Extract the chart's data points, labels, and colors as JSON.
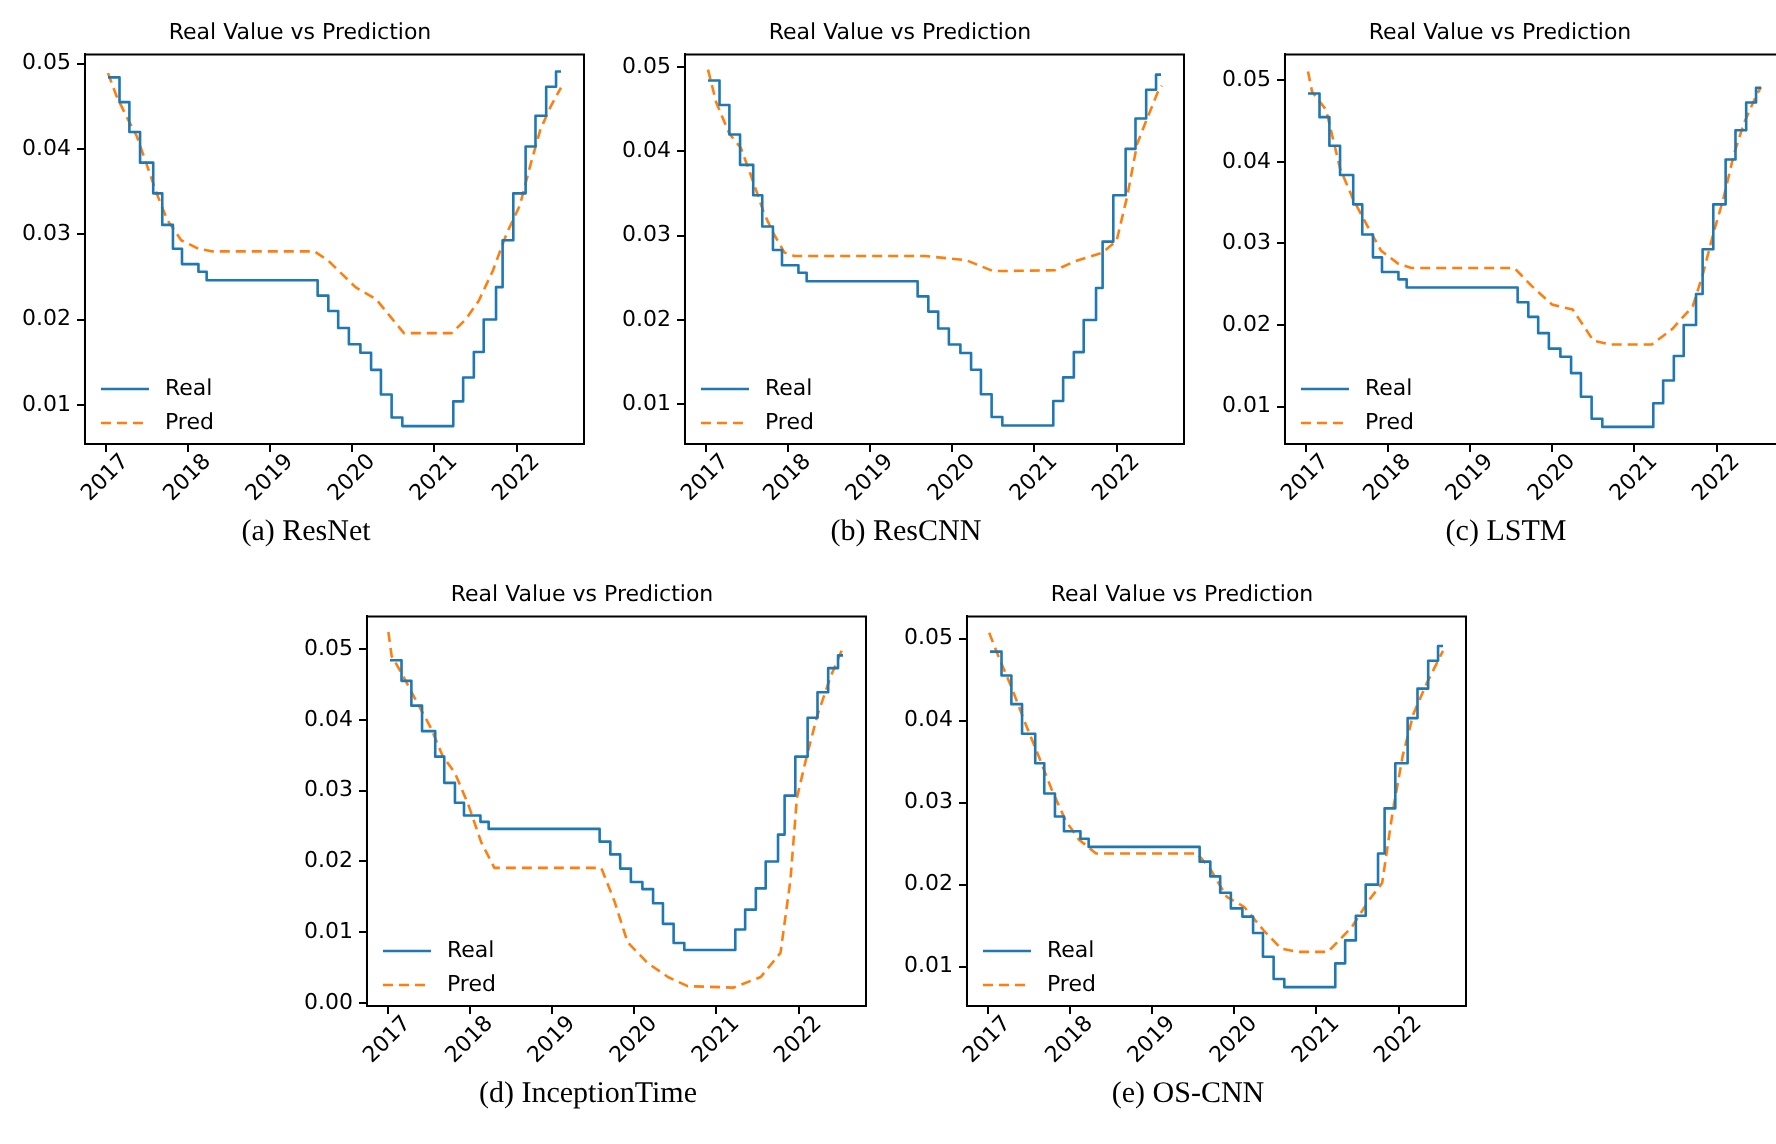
{
  "chart_data": [
    {
      "type": "line",
      "title": "Real Value vs Prediction",
      "annotations": [
        "(a) ResNet"
      ],
      "xlim": [
        2016.75,
        2022.82
      ],
      "xticks": [
        2017,
        2018,
        2019,
        2020,
        2021,
        2022
      ],
      "ylim": [
        0.0054,
        0.0511
      ],
      "yticks": [
        0.01,
        0.02,
        0.03,
        0.04,
        0.05
      ],
      "grid": false,
      "legend": "bottom left",
      "series": [
        {
          "name": "Real",
          "type": "step",
          "color": "#1f77b4",
          "line_style": "solid",
          "x": [
            2017.03,
            2017.17,
            2017.29,
            2017.42,
            2017.58,
            2017.69,
            2017.82,
            2017.93,
            2018.13,
            2018.23,
            2019.58,
            2019.71,
            2019.83,
            2019.96,
            2020.1,
            2020.23,
            2020.35,
            2020.48,
            2020.61,
            2021.23,
            2021.35,
            2021.48,
            2021.6,
            2021.75,
            2021.83,
            2021.96,
            2022.11,
            2022.23,
            2022.36,
            2022.48,
            2022.54
          ],
          "values": [
            0.0484,
            0.0455,
            0.042,
            0.0384,
            0.0348,
            0.0311,
            0.0283,
            0.0265,
            0.0256,
            0.0246,
            0.0228,
            0.021,
            0.019,
            0.0171,
            0.0161,
            0.0141,
            0.0112,
            0.0085,
            0.0075,
            0.0104,
            0.0132,
            0.0162,
            0.02,
            0.0238,
            0.0293,
            0.0348,
            0.0403,
            0.0439,
            0.0473,
            0.0491,
            0.0491
          ]
        },
        {
          "name": "Pred",
          "type": "line",
          "color": "#ff7f0e",
          "line_style": "dashed",
          "x": [
            2017.03,
            2017.13,
            2017.25,
            2017.38,
            2017.5,
            2017.63,
            2017.75,
            2017.92,
            2018.13,
            2018.29,
            2019.54,
            2019.71,
            2019.88,
            2020.04,
            2020.29,
            2020.46,
            2020.63,
            2021.21,
            2021.38,
            2021.54,
            2021.71,
            2021.88,
            2022.04,
            2022.17,
            2022.29,
            2022.42,
            2022.54
          ],
          "values": [
            0.0489,
            0.0463,
            0.0439,
            0.0415,
            0.0382,
            0.0346,
            0.0317,
            0.0293,
            0.0283,
            0.028,
            0.028,
            0.0269,
            0.0253,
            0.0238,
            0.0224,
            0.0204,
            0.0184,
            0.0184,
            0.02,
            0.0222,
            0.0257,
            0.0301,
            0.0334,
            0.0382,
            0.0423,
            0.0451,
            0.0472
          ]
        }
      ]
    },
    {
      "type": "line",
      "title": "Real Value vs Prediction",
      "annotations": [
        "(b) ResCNN"
      ],
      "xlim": [
        2016.75,
        2022.82
      ],
      "xticks": [
        2017,
        2018,
        2019,
        2020,
        2021,
        2022
      ],
      "ylim": [
        0.0053,
        0.0515
      ],
      "yticks": [
        0.01,
        0.02,
        0.03,
        0.04,
        0.05
      ],
      "grid": false,
      "legend": "bottom left",
      "series": [
        {
          "name": "Real",
          "type": "step",
          "color": "#1f77b4",
          "line_style": "solid",
          "x": [
            2017.03,
            2017.17,
            2017.29,
            2017.42,
            2017.58,
            2017.69,
            2017.82,
            2017.93,
            2018.13,
            2018.23,
            2019.58,
            2019.71,
            2019.83,
            2019.96,
            2020.1,
            2020.23,
            2020.35,
            2020.48,
            2020.61,
            2021.23,
            2021.35,
            2021.48,
            2021.6,
            2021.75,
            2021.83,
            2021.96,
            2022.11,
            2022.23,
            2022.36,
            2022.48,
            2022.54
          ],
          "values": [
            0.0484,
            0.0455,
            0.042,
            0.0384,
            0.0348,
            0.0311,
            0.0283,
            0.0265,
            0.0256,
            0.0246,
            0.0228,
            0.021,
            0.019,
            0.0171,
            0.0161,
            0.0141,
            0.0112,
            0.0085,
            0.0075,
            0.0104,
            0.0132,
            0.0162,
            0.02,
            0.0238,
            0.0293,
            0.0348,
            0.0403,
            0.0439,
            0.0473,
            0.0491,
            0.0491
          ]
        },
        {
          "name": "Pred",
          "type": "line",
          "color": "#ff7f0e",
          "line_style": "dashed",
          "x": [
            2017.03,
            2017.13,
            2017.29,
            2017.43,
            2017.58,
            2017.71,
            2017.83,
            2017.96,
            2018.08,
            2019.67,
            2020.17,
            2020.5,
            2021.25,
            2021.5,
            2021.83,
            2022.0,
            2022.13,
            2022.25,
            2022.38,
            2022.5,
            2022.55
          ],
          "values": [
            0.0497,
            0.0458,
            0.0421,
            0.0404,
            0.0364,
            0.0327,
            0.0302,
            0.028,
            0.0276,
            0.0276,
            0.0271,
            0.0258,
            0.0259,
            0.027,
            0.028,
            0.0294,
            0.0347,
            0.0409,
            0.0441,
            0.047,
            0.0478
          ]
        }
      ]
    },
    {
      "type": "line",
      "title": "Real Value vs Prediction",
      "annotations": [
        "(c) LSTM"
      ],
      "xlim": [
        2016.75,
        2022.82
      ],
      "xticks": [
        2017,
        2018,
        2019,
        2020,
        2021,
        2022
      ],
      "ylim": [
        0.0054,
        0.0532
      ],
      "yticks": [
        0.01,
        0.02,
        0.03,
        0.04,
        0.05
      ],
      "grid": false,
      "legend": "bottom left",
      "series": [
        {
          "name": "Real",
          "type": "step",
          "color": "#1f77b4",
          "line_style": "solid",
          "x": [
            2017.03,
            2017.17,
            2017.29,
            2017.42,
            2017.58,
            2017.69,
            2017.82,
            2017.93,
            2018.13,
            2018.23,
            2019.58,
            2019.71,
            2019.83,
            2019.96,
            2020.1,
            2020.23,
            2020.35,
            2020.48,
            2020.61,
            2021.23,
            2021.35,
            2021.48,
            2021.6,
            2021.75,
            2021.83,
            2021.96,
            2022.11,
            2022.23,
            2022.36,
            2022.48,
            2022.54
          ],
          "values": [
            0.0484,
            0.0455,
            0.042,
            0.0384,
            0.0348,
            0.0311,
            0.0283,
            0.0265,
            0.0256,
            0.0246,
            0.0228,
            0.021,
            0.019,
            0.0171,
            0.0161,
            0.0141,
            0.0112,
            0.0085,
            0.0075,
            0.0104,
            0.0132,
            0.0162,
            0.02,
            0.0238,
            0.0293,
            0.0348,
            0.0403,
            0.0439,
            0.0473,
            0.0491,
            0.0491
          ]
        },
        {
          "name": "Pred",
          "type": "line",
          "color": "#ff7f0e",
          "line_style": "dashed",
          "x": [
            2017.03,
            2017.08,
            2017.25,
            2017.42,
            2017.58,
            2017.75,
            2017.92,
            2018.13,
            2018.29,
            2019.54,
            2019.75,
            2020.0,
            2020.25,
            2020.5,
            2020.71,
            2021.21,
            2021.46,
            2021.71,
            2021.83,
            2021.96,
            2022.08,
            2022.21,
            2022.33,
            2022.48,
            2022.54
          ],
          "values": [
            0.0511,
            0.0486,
            0.0464,
            0.0392,
            0.0354,
            0.0322,
            0.0291,
            0.0275,
            0.027,
            0.027,
            0.0248,
            0.0225,
            0.0219,
            0.0181,
            0.0176,
            0.0176,
            0.0195,
            0.0223,
            0.0261,
            0.0312,
            0.0354,
            0.0409,
            0.0447,
            0.0481,
            0.0492
          ]
        }
      ]
    },
    {
      "type": "line",
      "title": "Real Value vs Prediction",
      "annotations": [
        "(d) InceptionTime"
      ],
      "xlim": [
        2016.75,
        2022.82
      ],
      "xticks": [
        2017,
        2018,
        2019,
        2020,
        2021,
        2022
      ],
      "ylim": [
        -0.0004,
        0.0546
      ],
      "yticks": [
        {
          "value": 0,
          "label": "0.00"
        },
        0.01,
        0.02,
        0.03,
        0.04,
        0.05
      ],
      "grid": false,
      "legend": "bottom left",
      "series": [
        {
          "name": "Real",
          "type": "step",
          "color": "#1f77b4",
          "line_style": "solid",
          "x": [
            2017.03,
            2017.17,
            2017.29,
            2017.42,
            2017.58,
            2017.69,
            2017.82,
            2017.93,
            2018.13,
            2018.23,
            2019.58,
            2019.71,
            2019.83,
            2019.96,
            2020.1,
            2020.23,
            2020.35,
            2020.48,
            2020.61,
            2021.23,
            2021.35,
            2021.48,
            2021.6,
            2021.75,
            2021.83,
            2021.96,
            2022.11,
            2022.23,
            2022.36,
            2022.48,
            2022.54
          ],
          "values": [
            0.0484,
            0.0455,
            0.042,
            0.0384,
            0.0348,
            0.0311,
            0.0283,
            0.0265,
            0.0256,
            0.0246,
            0.0228,
            0.021,
            0.019,
            0.0171,
            0.0161,
            0.0141,
            0.0112,
            0.0085,
            0.0075,
            0.0104,
            0.0132,
            0.0162,
            0.02,
            0.0238,
            0.0293,
            0.0348,
            0.0403,
            0.0439,
            0.0473,
            0.0491,
            0.0491
          ]
        },
        {
          "name": "Pred",
          "type": "line",
          "color": "#ff7f0e",
          "line_style": "dashed",
          "x": [
            2017.01,
            2017.05,
            2017.17,
            2017.37,
            2017.53,
            2017.67,
            2017.82,
            2017.98,
            2018.14,
            2018.3,
            2019.6,
            2019.76,
            2019.92,
            2020.16,
            2020.41,
            2020.65,
            2021.21,
            2021.54,
            2021.78,
            2021.9,
            2021.98,
            2022.1,
            2022.23,
            2022.39,
            2022.55
          ],
          "values": [
            0.0524,
            0.049,
            0.0466,
            0.0422,
            0.0388,
            0.0349,
            0.0325,
            0.0281,
            0.0227,
            0.0191,
            0.0191,
            0.0144,
            0.0086,
            0.0057,
            0.0037,
            0.0024,
            0.0022,
            0.0037,
            0.0071,
            0.0173,
            0.029,
            0.0349,
            0.0407,
            0.0461,
            0.0505
          ]
        }
      ]
    },
    {
      "type": "line",
      "title": "Real Value vs Prediction",
      "annotations": [
        "(e) OS-CNN"
      ],
      "xlim": [
        2016.75,
        2022.82
      ],
      "xticks": [
        2017,
        2018,
        2019,
        2020,
        2021,
        2022
      ],
      "ylim": [
        0.0052,
        0.0527
      ],
      "yticks": [
        0.01,
        0.02,
        0.03,
        0.04,
        0.05
      ],
      "grid": false,
      "legend": "bottom left",
      "series": [
        {
          "name": "Real",
          "type": "step",
          "color": "#1f77b4",
          "line_style": "solid",
          "x": [
            2017.03,
            2017.17,
            2017.29,
            2017.42,
            2017.58,
            2017.69,
            2017.82,
            2017.93,
            2018.13,
            2018.23,
            2019.58,
            2019.71,
            2019.83,
            2019.96,
            2020.1,
            2020.23,
            2020.35,
            2020.48,
            2020.61,
            2021.23,
            2021.35,
            2021.48,
            2021.6,
            2021.75,
            2021.83,
            2021.96,
            2022.11,
            2022.23,
            2022.36,
            2022.48,
            2022.54
          ],
          "values": [
            0.0484,
            0.0455,
            0.042,
            0.0384,
            0.0348,
            0.0311,
            0.0283,
            0.0265,
            0.0256,
            0.0246,
            0.0228,
            0.021,
            0.019,
            0.0171,
            0.0161,
            0.0141,
            0.0112,
            0.0085,
            0.0075,
            0.0104,
            0.0132,
            0.0162,
            0.02,
            0.0238,
            0.0293,
            0.0348,
            0.0403,
            0.0439,
            0.0473,
            0.0491,
            0.0491
          ]
        },
        {
          "name": "Pred",
          "type": "line",
          "color": "#ff7f0e",
          "line_style": "dashed",
          "x": [
            2017.02,
            2017.13,
            2017.29,
            2017.45,
            2017.62,
            2017.78,
            2017.95,
            2018.11,
            2018.32,
            2019.55,
            2019.71,
            2019.91,
            2020.12,
            2020.36,
            2020.57,
            2020.77,
            2021.14,
            2021.43,
            2021.64,
            2021.8,
            2021.93,
            2022.05,
            2022.18,
            2022.34,
            2022.54
          ],
          "values": [
            0.0507,
            0.0479,
            0.0441,
            0.0399,
            0.0357,
            0.0316,
            0.0278,
            0.0255,
            0.0238,
            0.0238,
            0.0219,
            0.0185,
            0.0173,
            0.0144,
            0.0122,
            0.0118,
            0.0118,
            0.0148,
            0.0181,
            0.0202,
            0.029,
            0.0357,
            0.0408,
            0.0445,
            0.0485
          ]
        }
      ]
    }
  ]
}
